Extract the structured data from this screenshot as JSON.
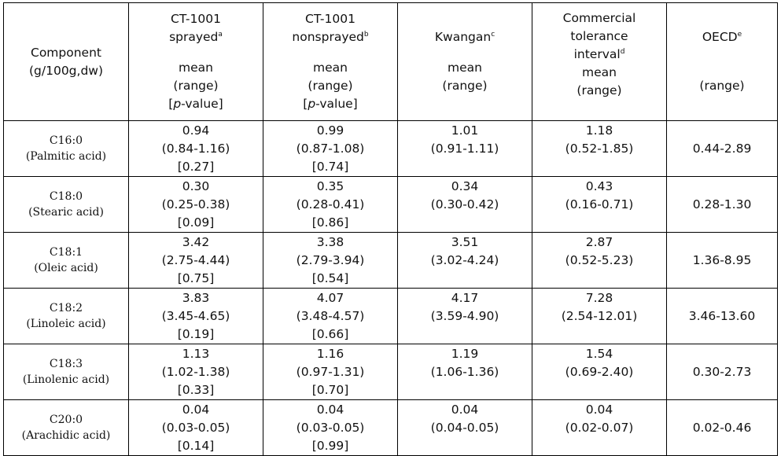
{
  "headers": {
    "component": {
      "line1": "Component",
      "line2": "(g/100g,dw)"
    },
    "sprayed": {
      "line1": "CT-1001",
      "line2": "sprayed",
      "sup": "a",
      "stat1": "mean",
      "stat2": "(range)",
      "stat3_open": "[",
      "stat3_p": "p",
      "stat3_close": "-value]"
    },
    "nonsprayed": {
      "line1": "CT-1001",
      "line2": "nonsprayed",
      "sup": "b",
      "stat1": "mean",
      "stat2": "(range)",
      "stat3_open": "[",
      "stat3_p": "p",
      "stat3_close": "-value]"
    },
    "kwangan": {
      "line1": "Kwangan",
      "sup": "c",
      "stat1": "mean",
      "stat2": "(range)"
    },
    "commercial": {
      "line1": "Commercial",
      "line2": "tolerance",
      "line3": "interval",
      "sup": "d",
      "stat1": "mean",
      "stat2": "(range)"
    },
    "oecd": {
      "line1": "OECD",
      "sup": "e",
      "stat2": "(range)"
    }
  },
  "rows": [
    {
      "code": "C16:0",
      "name": "(Palmitic acid)",
      "sprayed": {
        "mean": "0.94",
        "range": "(0.84-1.16)",
        "p": "[0.27]"
      },
      "nonsprayed": {
        "mean": "0.99",
        "range": "(0.87-1.08)",
        "p": "[0.74]"
      },
      "kwangan": {
        "mean": "1.01",
        "range": "(0.91-1.11)"
      },
      "commercial": {
        "mean": "1.18",
        "range": "(0.52-1.85)"
      },
      "oecd": "0.44-2.89"
    },
    {
      "code": "C18:0",
      "name": "(Stearic acid)",
      "sprayed": {
        "mean": "0.30",
        "range": "(0.25-0.38)",
        "p": "[0.09]"
      },
      "nonsprayed": {
        "mean": "0.35",
        "range": "(0.28-0.41)",
        "p": "[0.86]"
      },
      "kwangan": {
        "mean": "0.34",
        "range": "(0.30-0.42)"
      },
      "commercial": {
        "mean": "0.43",
        "range": "(0.16-0.71)"
      },
      "oecd": "0.28-1.30"
    },
    {
      "code": "C18:1",
      "name": "(Oleic acid)",
      "sprayed": {
        "mean": "3.42",
        "range": "(2.75-4.44)",
        "p": "[0.75]"
      },
      "nonsprayed": {
        "mean": "3.38",
        "range": "(2.79-3.94)",
        "p": "[0.54]"
      },
      "kwangan": {
        "mean": "3.51",
        "range": "(3.02-4.24)"
      },
      "commercial": {
        "mean": "2.87",
        "range": "(0.52-5.23)"
      },
      "oecd": "1.36-8.95"
    },
    {
      "code": "C18:2",
      "name": "(Linoleic acid)",
      "sprayed": {
        "mean": "3.83",
        "range": "(3.45-4.65)",
        "p": "[0.19]"
      },
      "nonsprayed": {
        "mean": "4.07",
        "range": "(3.48-4.57)",
        "p": "[0.66]"
      },
      "kwangan": {
        "mean": "4.17",
        "range": "(3.59-4.90)"
      },
      "commercial": {
        "mean": "7.28",
        "range": "(2.54-12.01)"
      },
      "oecd": "3.46-13.60"
    },
    {
      "code": "C18:3",
      "name": "(Linolenic acid)",
      "sprayed": {
        "mean": "1.13",
        "range": "(1.02-1.38)",
        "p": "[0.33]"
      },
      "nonsprayed": {
        "mean": "1.16",
        "range": "(0.97-1.31)",
        "p": "[0.70]"
      },
      "kwangan": {
        "mean": "1.19",
        "range": "(1.06-1.36)"
      },
      "commercial": {
        "mean": "1.54",
        "range": "(0.69-2.40)"
      },
      "oecd": "0.30-2.73"
    },
    {
      "code": "C20:0",
      "name": "(Arachidic acid)",
      "sprayed": {
        "mean": "0.04",
        "range": "(0.03-0.05)",
        "p": "[0.14]"
      },
      "nonsprayed": {
        "mean": "0.04",
        "range": "(0.03-0.05)",
        "p": "[0.99]"
      },
      "kwangan": {
        "mean": "0.04",
        "range": "(0.04-0.05)"
      },
      "commercial": {
        "mean": "0.04",
        "range": "(0.02-0.07)"
      },
      "oecd": "0.02-0.46"
    }
  ]
}
